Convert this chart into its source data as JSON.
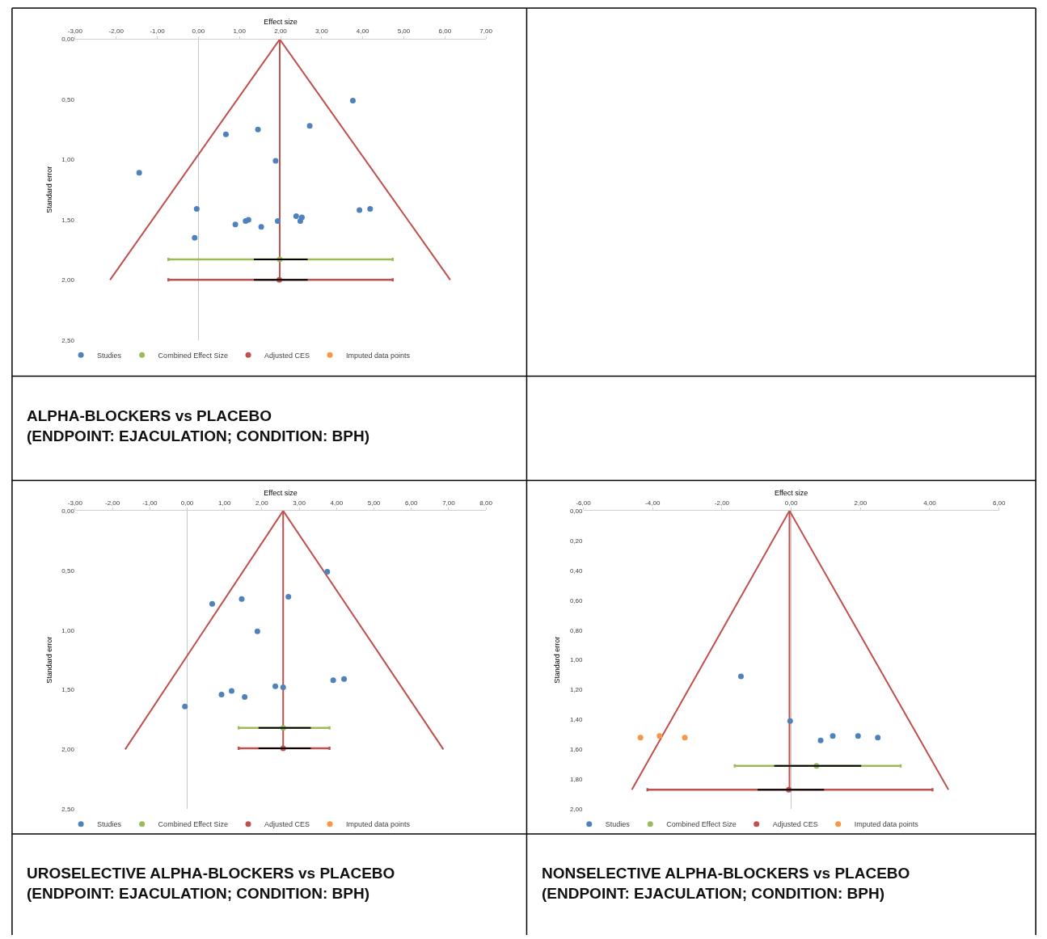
{
  "chart_data": [
    {
      "type": "scatter",
      "title": "ALPHA-BLOCKERS vs PLACEBO\n(ENDPOINT: EJACULATION; CONDITION: BPH)",
      "xlabel": "Effect size",
      "ylabel": "Standard error",
      "legend": "bottom",
      "xlim": [
        -3,
        7
      ],
      "xticks": [
        {
          "value": -3,
          "label": "-3,00"
        },
        {
          "value": -2,
          "label": "-2,00"
        },
        {
          "value": -1,
          "label": "-1,00"
        },
        {
          "value": 0,
          "label": "0,00"
        },
        {
          "value": 1,
          "label": "1,00"
        },
        {
          "value": 2,
          "label": "2,00"
        },
        {
          "value": 3,
          "label": "3,00"
        },
        {
          "value": 4,
          "label": "4,00"
        },
        {
          "value": 5,
          "label": "5,00"
        },
        {
          "value": 6,
          "label": "6,00"
        },
        {
          "value": 7,
          "label": "7,00"
        }
      ],
      "ylim": [
        2.5,
        0
      ],
      "yticks": [
        {
          "value": 0,
          "label": "0,00"
        },
        {
          "value": 0.5,
          "label": "0,50"
        },
        {
          "value": 1,
          "label": "1,00"
        },
        {
          "value": 1.5,
          "label": "1,50"
        },
        {
          "value": 2,
          "label": "2,00"
        },
        {
          "value": 2.5,
          "label": "2,50"
        }
      ],
      "series": [
        {
          "type": "line",
          "color": "#c0504d",
          "marker": "none",
          "x": [
            -2.15,
            1.98,
            6.13
          ],
          "values": [
            2.0,
            0,
            2.0
          ]
        },
        {
          "type": "line",
          "color": "#c0504d",
          "marker": "none",
          "x": [
            1.98,
            1.98
          ],
          "values": [
            0,
            2.0
          ]
        },
        {
          "name": "Studies",
          "color": "#4f81bd",
          "marker": "circle",
          "x": [
            3.76,
            0.67,
            1.45,
            2.71,
            1.88,
            -1.44,
            -0.04,
            3.92,
            4.18,
            2.38,
            2.52,
            2.48,
            1.93,
            1.15,
            1.22,
            0.9,
            1.53,
            -0.09
          ],
          "values": [
            0.51,
            0.79,
            0.75,
            0.72,
            1.01,
            1.11,
            1.41,
            1.42,
            1.41,
            1.47,
            1.48,
            1.51,
            1.51,
            1.51,
            1.5,
            1.54,
            1.56,
            1.65
          ]
        },
        {
          "name": "Combined Effect Size",
          "color": "#9bbb59",
          "marker": "circle",
          "x": [
            1.98
          ],
          "values": [
            1.83
          ],
          "xerrors": [
            [
              -0.73,
              4.73
            ]
          ]
        },
        {
          "type": "line",
          "color": "#000000",
          "marker": "none",
          "x": [
            1.35,
            2.66
          ],
          "values": [
            1.83,
            1.83
          ]
        },
        {
          "name": "Adjusted CES",
          "color": "#c0504d",
          "marker": "circle",
          "x": [
            1.97
          ],
          "values": [
            2.0
          ],
          "xerrors": [
            [
              -0.73,
              4.73
            ]
          ]
        },
        {
          "type": "line",
          "color": "#000000",
          "marker": "none",
          "x": [
            1.35,
            2.66
          ],
          "values": [
            2.0,
            2.0
          ]
        },
        {
          "name": "Imputed data points",
          "color": "#f79646",
          "marker": "circle"
        }
      ]
    },
    {
      "type": "scatter",
      "title": "UROSELECTIVE ALPHA-BLOCKERS vs PLACEBO\n(ENDPOINT: EJACULATION; CONDITION: BPH)",
      "xlabel": "Effect size",
      "ylabel": "Standard error",
      "legend": "bottom",
      "xlim": [
        -3,
        8
      ],
      "xticks": [
        {
          "value": -3,
          "label": "-3,00"
        },
        {
          "value": -2,
          "label": "-2,00"
        },
        {
          "value": -1,
          "label": "-1,00"
        },
        {
          "value": 0,
          "label": "0,00"
        },
        {
          "value": 1,
          "label": "1,00"
        },
        {
          "value": 2,
          "label": "2,00"
        },
        {
          "value": 3,
          "label": "3,00"
        },
        {
          "value": 4,
          "label": "4,00"
        },
        {
          "value": 5,
          "label": "5,00"
        },
        {
          "value": 6,
          "label": "6,00"
        },
        {
          "value": 7,
          "label": "7,00"
        },
        {
          "value": 8,
          "label": "8,00"
        }
      ],
      "ylim": [
        2.5,
        0
      ],
      "yticks": [
        {
          "value": 0,
          "label": "0,00"
        },
        {
          "value": 0.5,
          "label": "0,50"
        },
        {
          "value": 1,
          "label": "1,00"
        },
        {
          "value": 1.5,
          "label": "1,50"
        },
        {
          "value": 2,
          "label": "2,00"
        },
        {
          "value": 2.5,
          "label": "2,50"
        }
      ],
      "series": [
        {
          "type": "line",
          "color": "#c0504d",
          "marker": "none",
          "x": [
            -1.66,
            2.57,
            6.86
          ],
          "values": [
            2.0,
            0,
            2.0
          ]
        },
        {
          "type": "line",
          "color": "#c0504d",
          "marker": "none",
          "x": [
            2.57,
            2.57
          ],
          "values": [
            0,
            2.0
          ]
        },
        {
          "name": "Studies",
          "color": "#4f81bd",
          "marker": "circle",
          "x": [
            3.75,
            0.67,
            1.46,
            2.71,
            1.88,
            3.91,
            4.2,
            2.36,
            2.57,
            1.19,
            0.92,
            1.54,
            -0.06
          ],
          "values": [
            0.51,
            0.78,
            0.74,
            0.72,
            1.01,
            1.42,
            1.41,
            1.47,
            1.48,
            1.51,
            1.54,
            1.56,
            1.64
          ]
        },
        {
          "name": "Combined Effect Size",
          "color": "#9bbb59",
          "marker": "circle",
          "x": [
            2.57
          ],
          "values": [
            1.82
          ],
          "xerrors": [
            [
              1.38,
              3.81
            ]
          ]
        },
        {
          "type": "line",
          "color": "#000000",
          "marker": "none",
          "x": [
            1.91,
            3.31
          ],
          "values": [
            1.82,
            1.82
          ]
        },
        {
          "name": "Adjusted CES",
          "color": "#c0504d",
          "marker": "circle",
          "x": [
            2.57
          ],
          "values": [
            1.99
          ],
          "xerrors": [
            [
              1.38,
              3.81
            ]
          ]
        },
        {
          "type": "line",
          "color": "#000000",
          "marker": "none",
          "x": [
            1.91,
            3.31
          ],
          "values": [
            1.99,
            1.99
          ]
        },
        {
          "name": "Imputed data points",
          "color": "#f79646",
          "marker": "circle"
        }
      ]
    },
    {
      "type": "scatter",
      "title": "NONSELECTIVE ALPHA-BLOCKERS vs PLACEBO\n(ENDPOINT: EJACULATION; CONDITION: BPH)",
      "xlabel": "Effect size",
      "ylabel": "Standard error",
      "legend": "bottom",
      "xlim": [
        -6,
        6
      ],
      "xticks": [
        {
          "value": -6,
          "label": "-6,00"
        },
        {
          "value": -4,
          "label": "-4,00"
        },
        {
          "value": -2,
          "label": "-2,00"
        },
        {
          "value": 0,
          "label": "0,00"
        },
        {
          "value": 2,
          "label": "2,00"
        },
        {
          "value": 4,
          "label": "4,00"
        },
        {
          "value": 6,
          "label": "6,00"
        }
      ],
      "ylim": [
        2.0,
        0
      ],
      "yticks": [
        {
          "value": 0,
          "label": "0,00"
        },
        {
          "value": 0.2,
          "label": "0,20"
        },
        {
          "value": 0.4,
          "label": "0,40"
        },
        {
          "value": 0.6,
          "label": "0,60"
        },
        {
          "value": 0.8,
          "label": "0,80"
        },
        {
          "value": 1.0,
          "label": "1,00"
        },
        {
          "value": 1.2,
          "label": "1,20"
        },
        {
          "value": 1.4,
          "label": "1,40"
        },
        {
          "value": 1.6,
          "label": "1,60"
        },
        {
          "value": 1.8,
          "label": "1,80"
        },
        {
          "value": 2.0,
          "label": "2,00"
        }
      ],
      "series": [
        {
          "type": "line",
          "color": "#c0504d",
          "marker": "none",
          "x": [
            -4.6,
            -0.05,
            4.54
          ],
          "values": [
            1.87,
            0,
            1.87
          ]
        },
        {
          "type": "line",
          "color": "#c0504d",
          "marker": "none",
          "x": [
            -0.05,
            -0.05
          ],
          "values": [
            0,
            1.87
          ]
        },
        {
          "name": "Studies",
          "color": "#4f81bd",
          "marker": "circle",
          "x": [
            -1.45,
            -0.03,
            0.85,
            1.2,
            1.93,
            2.5
          ],
          "values": [
            1.11,
            1.41,
            1.54,
            1.51,
            1.51,
            1.52
          ]
        },
        {
          "name": "Combined Effect Size",
          "color": "#9bbb59",
          "marker": "circle",
          "x": [
            0.73
          ],
          "values": [
            1.71
          ],
          "xerrors": [
            [
              -1.63,
              3.16
            ]
          ]
        },
        {
          "type": "line",
          "color": "#000000",
          "marker": "none",
          "x": [
            -0.49,
            2.02
          ],
          "values": [
            1.71,
            1.71
          ]
        },
        {
          "name": "Adjusted CES",
          "color": "#c0504d",
          "marker": "circle",
          "x": [
            -0.07
          ],
          "values": [
            1.87
          ],
          "xerrors": [
            [
              -4.15,
              4.08
            ]
          ]
        },
        {
          "type": "line",
          "color": "#000000",
          "marker": "none",
          "x": [
            -0.97,
            0.95
          ],
          "values": [
            1.87,
            1.87
          ]
        },
        {
          "name": "Imputed data points",
          "color": "#f79646",
          "marker": "circle",
          "x": [
            -4.35,
            -3.8,
            -3.07
          ],
          "values": [
            1.52,
            1.51,
            1.52
          ]
        }
      ]
    }
  ]
}
